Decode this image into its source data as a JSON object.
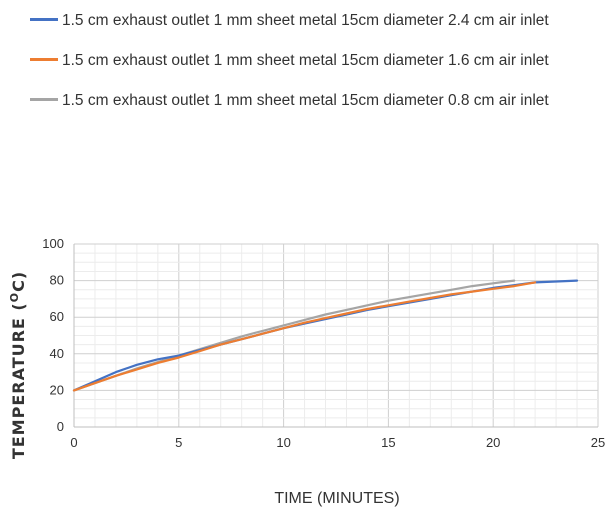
{
  "chart_data": {
    "type": "line",
    "title": "",
    "xlabel": "TIME (MINUTES)",
    "ylabel": "TEMPERATURE (",
    "ylabel_sup": "O",
    "ylabel_unit": "C)",
    "xlim": [
      0,
      25
    ],
    "ylim": [
      0,
      100
    ],
    "xticks": [
      0,
      5,
      10,
      15,
      20,
      25
    ],
    "yticks": [
      0,
      20,
      40,
      60,
      80,
      100
    ],
    "grid": true,
    "legend_position": "top",
    "series": [
      {
        "name": "1.5 cm exhaust outlet 1 mm sheet metal 15cm diameter 2.4 cm air inlet",
        "color": "#4472C4",
        "x": [
          0,
          1,
          2,
          3,
          4,
          5,
          6,
          7,
          8,
          9,
          10,
          11,
          12,
          13,
          14,
          15,
          16,
          17,
          18,
          19,
          20,
          21,
          22,
          23,
          24
        ],
        "y": [
          20,
          25,
          30,
          34,
          37,
          39,
          42,
          45,
          48,
          51,
          54,
          56.5,
          59,
          61.5,
          64,
          66,
          68,
          70,
          72,
          74,
          76,
          77.5,
          79,
          79.5,
          80
        ]
      },
      {
        "name": "1.5 cm exhaust outlet 1 mm sheet metal 15cm diameter 1.6 cm air inlet",
        "color": "#ED7D31",
        "x": [
          0,
          1,
          2,
          3,
          4,
          5,
          6,
          7,
          8,
          9,
          10,
          11,
          12,
          13,
          14,
          15,
          16,
          17,
          18,
          19,
          20,
          21,
          22
        ],
        "y": [
          20,
          24,
          28,
          31.5,
          35,
          38,
          41.5,
          45,
          48,
          51,
          54,
          57,
          59.5,
          62,
          64.5,
          66.5,
          68.5,
          70.5,
          72.5,
          74,
          75.5,
          77,
          79
        ]
      },
      {
        "name": "1.5 cm exhaust outlet 1 mm sheet metal 15cm diameter 0.8 cm air inlet",
        "color": "#A5A5A5",
        "x": [
          0,
          1,
          2,
          3,
          4,
          5,
          6,
          7,
          8,
          9,
          10,
          11,
          12,
          13,
          14,
          15,
          16,
          17,
          18,
          19,
          20,
          21
        ],
        "y": [
          20,
          24,
          28,
          32,
          35.5,
          39,
          42.5,
          46,
          49.5,
          52.5,
          55.5,
          58.5,
          61.5,
          64,
          66.5,
          69,
          71,
          73,
          75,
          77,
          78.5,
          80
        ]
      }
    ]
  }
}
